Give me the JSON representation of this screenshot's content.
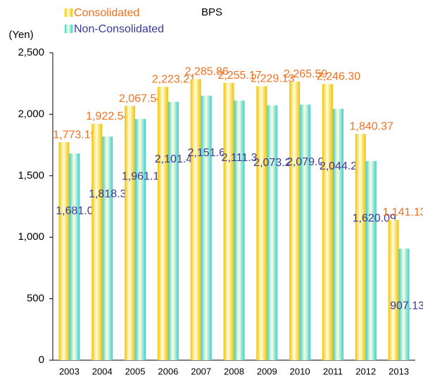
{
  "chart_data": {
    "type": "bar",
    "title": "BPS",
    "y_label": "(Yen)",
    "categories": [
      "2003",
      "2004",
      "2005",
      "2006",
      "2007",
      "2008",
      "2009",
      "2010",
      "2011",
      "2012",
      "2013"
    ],
    "series": [
      {
        "name": "Consolidated",
        "color": "#f2c200",
        "label_color": "#f07020",
        "values": [
          1773.19,
          1922.54,
          2067.54,
          2223.21,
          2285.86,
          2255.17,
          2229.13,
          2265.59,
          2246.3,
          1840.37,
          1141.13
        ],
        "value_labels": [
          "1,773.19",
          "1,922.54",
          "2,067.54",
          "2,223.21",
          "2,285.86",
          "2,255.17",
          "2,229.13",
          "2,265.59",
          "2,246.30",
          "1,840.37",
          "1,141.13"
        ]
      },
      {
        "name": "Non-Consolidated",
        "color": "#3ccfcf",
        "label_color": "#3a3a96",
        "values": [
          1681.03,
          1818.35,
          1961.19,
          2101.48,
          2151.63,
          2111.37,
          2073.23,
          2079.04,
          2044.29,
          1620.09,
          907.13
        ],
        "value_labels": [
          "1,681.03",
          "1,818.35",
          "1,961.19",
          "2,101.48",
          "2,151.63",
          "2,111.37",
          "2,073.23",
          "2,079.04",
          "2,044.29",
          "1,620.09",
          "907.13"
        ]
      }
    ],
    "ylim": [
      0,
      2500
    ],
    "yticks": [
      0,
      500,
      {
        "value": 1000,
        "label": "1,000"
      },
      {
        "value": 1500,
        "label": "1,500"
      },
      {
        "value": 2000,
        "label": "2,000"
      },
      {
        "value": 2500,
        "label": "2,500"
      }
    ],
    "grid": false
  }
}
